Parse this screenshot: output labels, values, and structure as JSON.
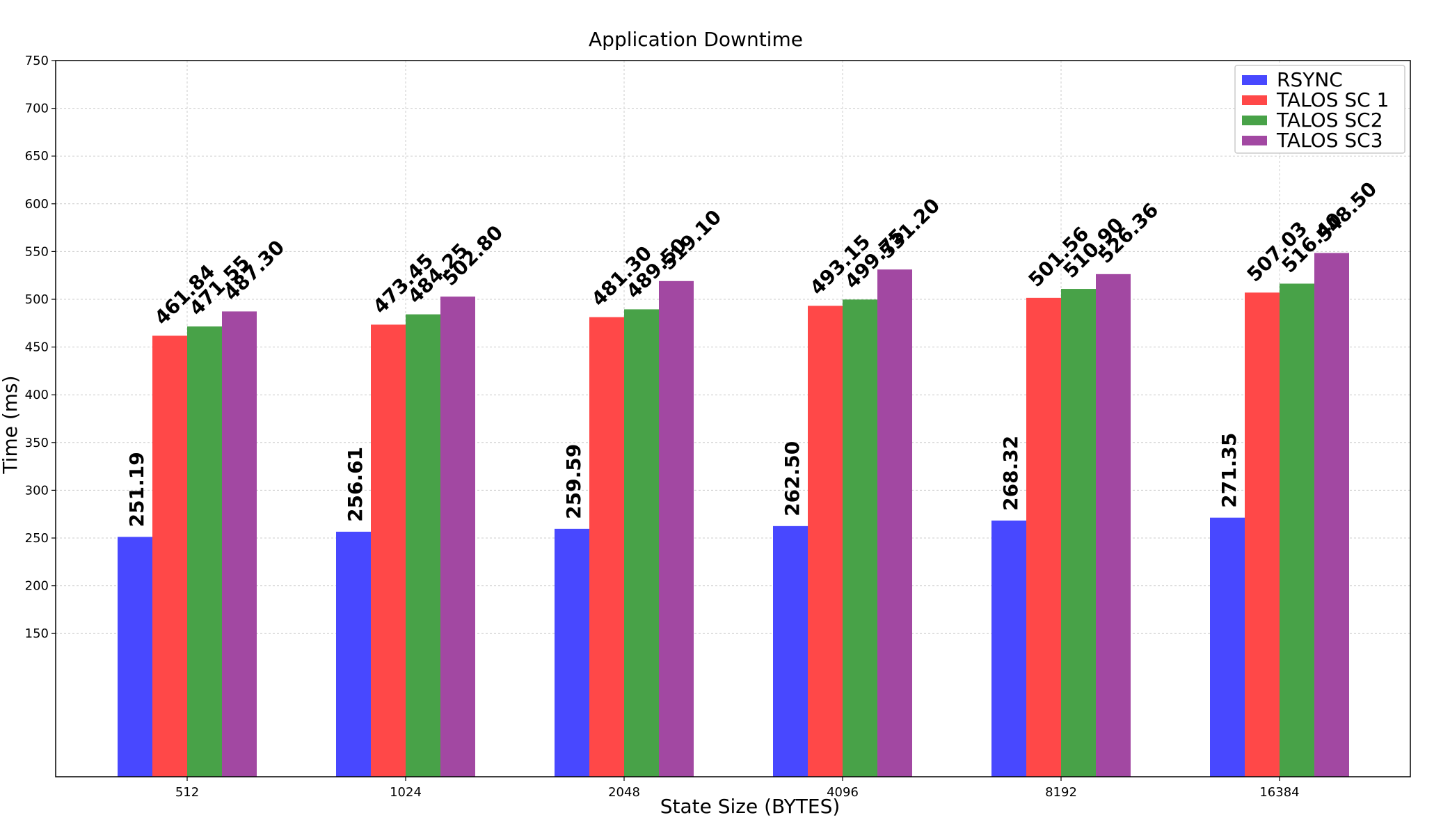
{
  "chart_data": {
    "type": "bar",
    "title": "Application Downtime",
    "xlabel": "State Size (BYTES)",
    "ylabel": "Time (ms)",
    "categories": [
      "512",
      "1024",
      "2048",
      "4096",
      "8192",
      "16384"
    ],
    "yticks": [
      150,
      200,
      250,
      300,
      350,
      400,
      450,
      500,
      550,
      600,
      650,
      700,
      750
    ],
    "ylim": [
      0,
      750
    ],
    "grid": true,
    "legend_position": "top-right",
    "series": [
      {
        "name": "RSYNC",
        "color": "#4848ff",
        "values": [
          251.19,
          256.61,
          259.59,
          262.5,
          268.32,
          271.35
        ],
        "labels": [
          "251.19",
          "256.61",
          "259.59",
          "262.50",
          "268.32",
          "271.35"
        ]
      },
      {
        "name": "TALOS SC 1",
        "color": "#ff4848",
        "values": [
          461.84,
          473.45,
          481.3,
          493.15,
          501.56,
          507.03
        ],
        "labels": [
          "461.84",
          "473.45",
          "481.30",
          "493.15",
          "501.56",
          "507.03"
        ]
      },
      {
        "name": "TALOS SC2",
        "color": "#48a248",
        "values": [
          471.55,
          484.25,
          489.5,
          499.75,
          510.9,
          516.4
        ],
        "labels": [
          "471.55",
          "484.25",
          "489.50",
          "499.75",
          "510.90",
          "516.40"
        ]
      },
      {
        "name": "TALOS SC3",
        "color": "#a248a2",
        "values": [
          487.3,
          502.8,
          519.1,
          531.2,
          526.36,
          548.5
        ],
        "labels": [
          "487.30",
          "502.80",
          "519.10",
          "531.20",
          "526.36",
          "548.50"
        ]
      }
    ]
  }
}
